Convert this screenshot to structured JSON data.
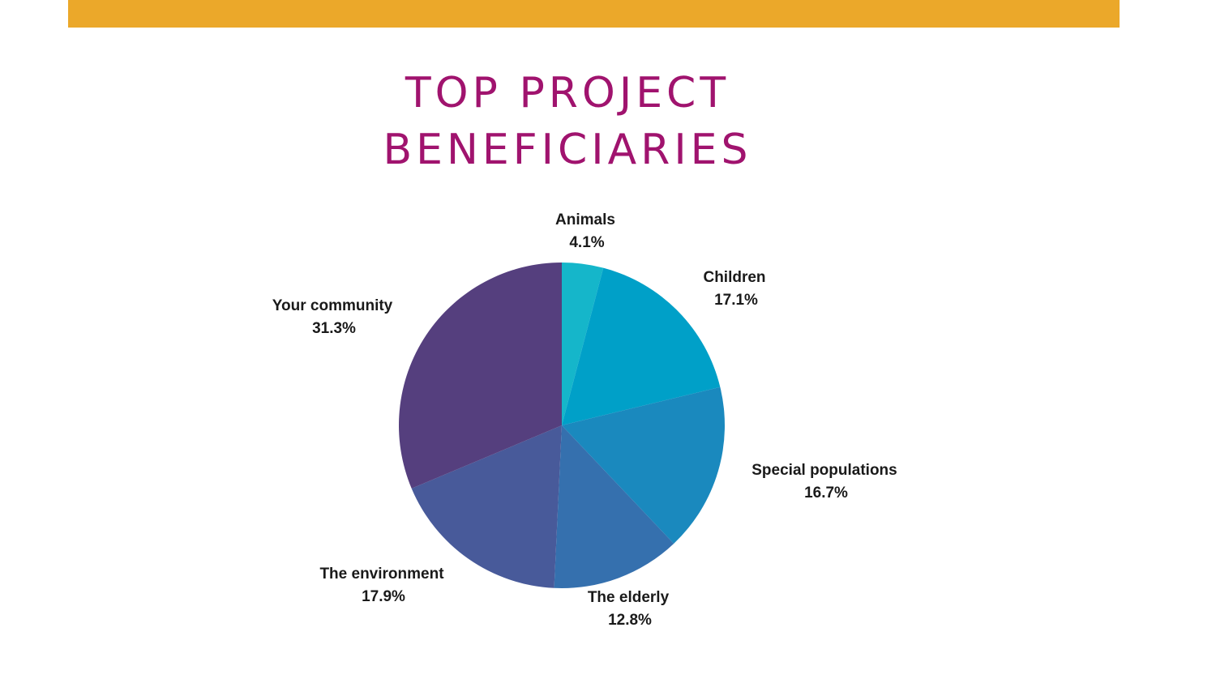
{
  "colors": {
    "top_bar": "#EBA82A",
    "title": "#A0136E"
  },
  "header": {
    "title_line1": "TOP PROJECT",
    "title_line2": "BENEFICIARIES"
  },
  "chart_data": {
    "type": "pie",
    "title": "TOP PROJECT BENEFICIARIES",
    "start": "12 o'clock",
    "direction": "clockwise",
    "slices": [
      {
        "label": "Animals",
        "value": 4.1,
        "value_label": "4.1%",
        "color": "#15B6CA"
      },
      {
        "label": "Children",
        "value": 17.1,
        "value_label": "17.1%",
        "color": "#00A0C8"
      },
      {
        "label": "Special populations",
        "value": 16.7,
        "value_label": "16.7%",
        "color": "#1A89BE"
      },
      {
        "label": "The elderly",
        "value": 12.8,
        "value_label": "12.8%",
        "color": "#3570AE"
      },
      {
        "label": "The environment",
        "value": 17.9,
        "value_label": "17.9%",
        "color": "#485A9A"
      },
      {
        "label": "Your community",
        "value": 31.3,
        "value_label": "31.3%",
        "color": "#553F7E"
      }
    ]
  }
}
